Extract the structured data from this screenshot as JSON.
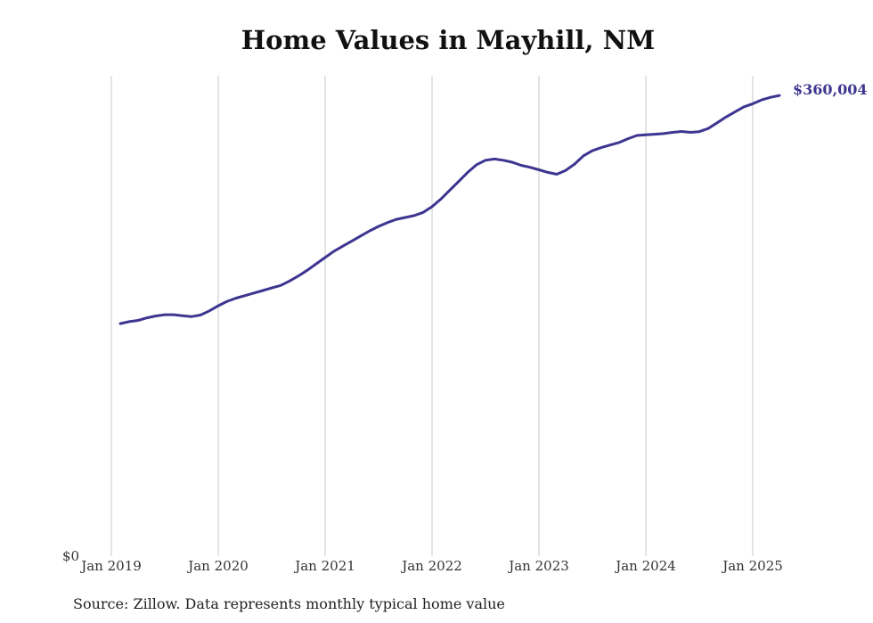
{
  "colors": {
    "line": "#3d3590",
    "gridline": "#c8c8c8",
    "text": "#333333"
  },
  "chart_data": {
    "type": "line",
    "title": "Home Values in Mayhill, NM",
    "source": "Source: Zillow. Data represents monthly typical home value",
    "xlabel": "",
    "ylabel": "",
    "y_tick_labels": [
      "$0"
    ],
    "x_tick_labels": [
      "Jan 2019",
      "Jan 2020",
      "Jan 2021",
      "Jan 2022",
      "Jan 2023",
      "Jan 2024",
      "Jan 2025"
    ],
    "x_ticks": [
      "2019-01",
      "2020-01",
      "2021-01",
      "2022-01",
      "2023-01",
      "2024-01",
      "2025-01"
    ],
    "ylim": [
      0,
      378000
    ],
    "grid": "vertical",
    "end_label": "$360,004",
    "series": [
      {
        "x": [
          "2019-02",
          "2019-03",
          "2019-04",
          "2019-05",
          "2019-06",
          "2019-07",
          "2019-08",
          "2019-09",
          "2019-10",
          "2019-11",
          "2019-12",
          "2020-01",
          "2020-02",
          "2020-03",
          "2020-04",
          "2020-05",
          "2020-06",
          "2020-07",
          "2020-08",
          "2020-09",
          "2020-10",
          "2020-11",
          "2020-12",
          "2021-01",
          "2021-02",
          "2021-03",
          "2021-04",
          "2021-05",
          "2021-06",
          "2021-07",
          "2021-08",
          "2021-09",
          "2021-10",
          "2021-11",
          "2021-12",
          "2022-01",
          "2022-02",
          "2022-03",
          "2022-04",
          "2022-05",
          "2022-06",
          "2022-07",
          "2022-08",
          "2022-09",
          "2022-10",
          "2022-11",
          "2022-12",
          "2023-01",
          "2023-02",
          "2023-03",
          "2023-04",
          "2023-05",
          "2023-06",
          "2023-07",
          "2023-08",
          "2023-09",
          "2023-10",
          "2023-11",
          "2023-12",
          "2024-01",
          "2024-02",
          "2024-03",
          "2024-04",
          "2024-05",
          "2024-06",
          "2024-07",
          "2024-08",
          "2024-09",
          "2024-10",
          "2024-11",
          "2024-12",
          "2025-01",
          "2025-02",
          "2025-03",
          "2025-04"
        ],
        "values": [
          183000,
          184500,
          185500,
          187500,
          189000,
          190000,
          190000,
          189200,
          188500,
          189700,
          193000,
          197000,
          200500,
          203000,
          205000,
          207000,
          209000,
          211000,
          213000,
          216500,
          220500,
          225000,
          230000,
          235000,
          240000,
          244000,
          248000,
          252000,
          256000,
          259500,
          262500,
          265000,
          266500,
          268000,
          270500,
          275000,
          281000,
          288000,
          295000,
          302000,
          308000,
          311500,
          312500,
          311500,
          310000,
          307500,
          306000,
          304000,
          302000,
          300500,
          303500,
          308500,
          315000,
          319000,
          321500,
          323500,
          325500,
          328500,
          331000,
          331500,
          332000,
          332500,
          333500,
          334200,
          333500,
          334000,
          336500,
          341000,
          345500,
          349500,
          353500,
          356000,
          359000,
          361000,
          362500
        ]
      }
    ]
  }
}
